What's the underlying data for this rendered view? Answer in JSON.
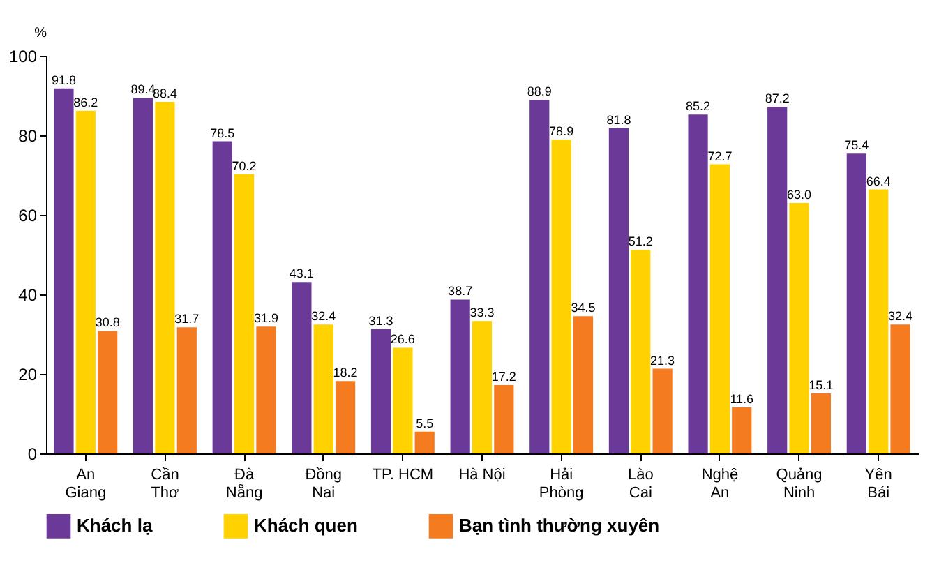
{
  "chart_data": {
    "type": "bar",
    "ylabel": "%",
    "categories": [
      "An\nGiang",
      "Cần\nThơ",
      "Đà\nNẵng",
      "Đồng\nNai",
      "TP. HCM",
      "Hà Nội",
      "Hải\nPhòng",
      "Lào\nCai",
      "Nghệ\nAn",
      "Quảng\nNinh",
      "Yên\nBái"
    ],
    "series": [
      {
        "name": "Khách lạ",
        "color": "#6b3a99",
        "values": [
          91.8,
          89.4,
          78.5,
          43.1,
          31.3,
          38.7,
          88.9,
          81.8,
          85.2,
          87.2,
          75.4
        ],
        "value_labels": [
          "91.8",
          "89.4",
          "78.5",
          "43.1",
          "31.3",
          "38.7",
          "88.9",
          "81.8",
          "85.2",
          "87.2",
          "75.4"
        ]
      },
      {
        "name": "Khách quen",
        "color": "#ffd200",
        "values": [
          86.2,
          88.4,
          70.2,
          32.4,
          26.6,
          33.3,
          78.9,
          51.2,
          72.7,
          63.0,
          66.4
        ],
        "value_labels": [
          "86.2",
          "88.4",
          "70.2",
          "32.4",
          "26.6",
          "33.3",
          "78.9",
          "51.2",
          "72.7",
          "63.0",
          "66.4"
        ]
      },
      {
        "name": "Bạn tình thường xuyên",
        "color": "#f47b20",
        "values": [
          30.8,
          31.7,
          31.9,
          18.2,
          5.5,
          17.2,
          34.5,
          21.3,
          11.6,
          15.1,
          32.4
        ],
        "value_labels": [
          "30.8",
          "31.7",
          "31.9",
          "18.2",
          "5.5",
          "17.2",
          "34.5",
          "21.3",
          "11.6",
          "15.1",
          "32.4"
        ]
      }
    ],
    "ylim": [
      0,
      100
    ],
    "yticks": [
      0,
      20,
      40,
      60,
      80,
      100
    ],
    "grid": false,
    "legend": "bottom"
  }
}
